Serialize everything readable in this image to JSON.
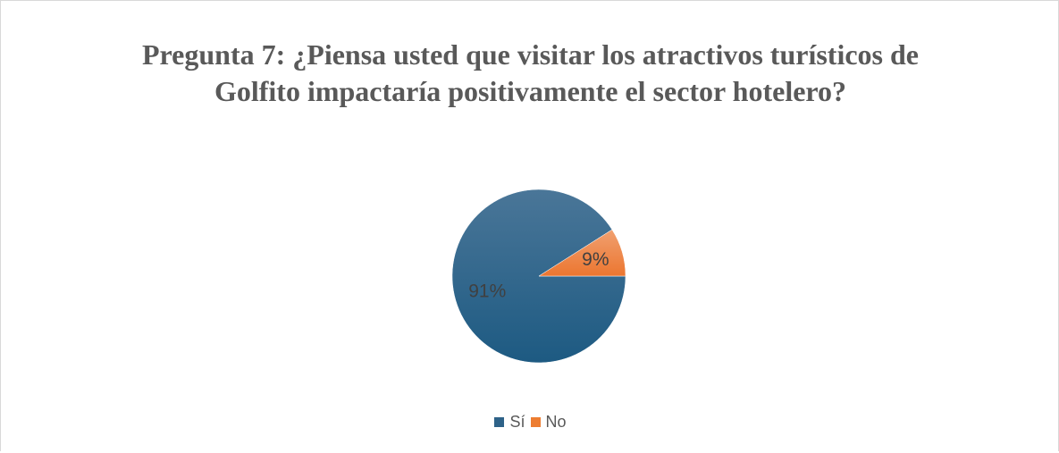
{
  "chart_data": {
    "type": "pie",
    "title": "Pregunta 7: ¿Piensa usted que visitar los atractivos turísticos de Golfito impactaría positivamente el sector hotelero?",
    "categories": [
      "Sí",
      "No"
    ],
    "values": [
      91,
      9
    ],
    "data_labels": [
      "91%",
      "9%"
    ],
    "colors": [
      "#2e6288",
      "#ed7d31"
    ],
    "legend_position": "bottom"
  }
}
